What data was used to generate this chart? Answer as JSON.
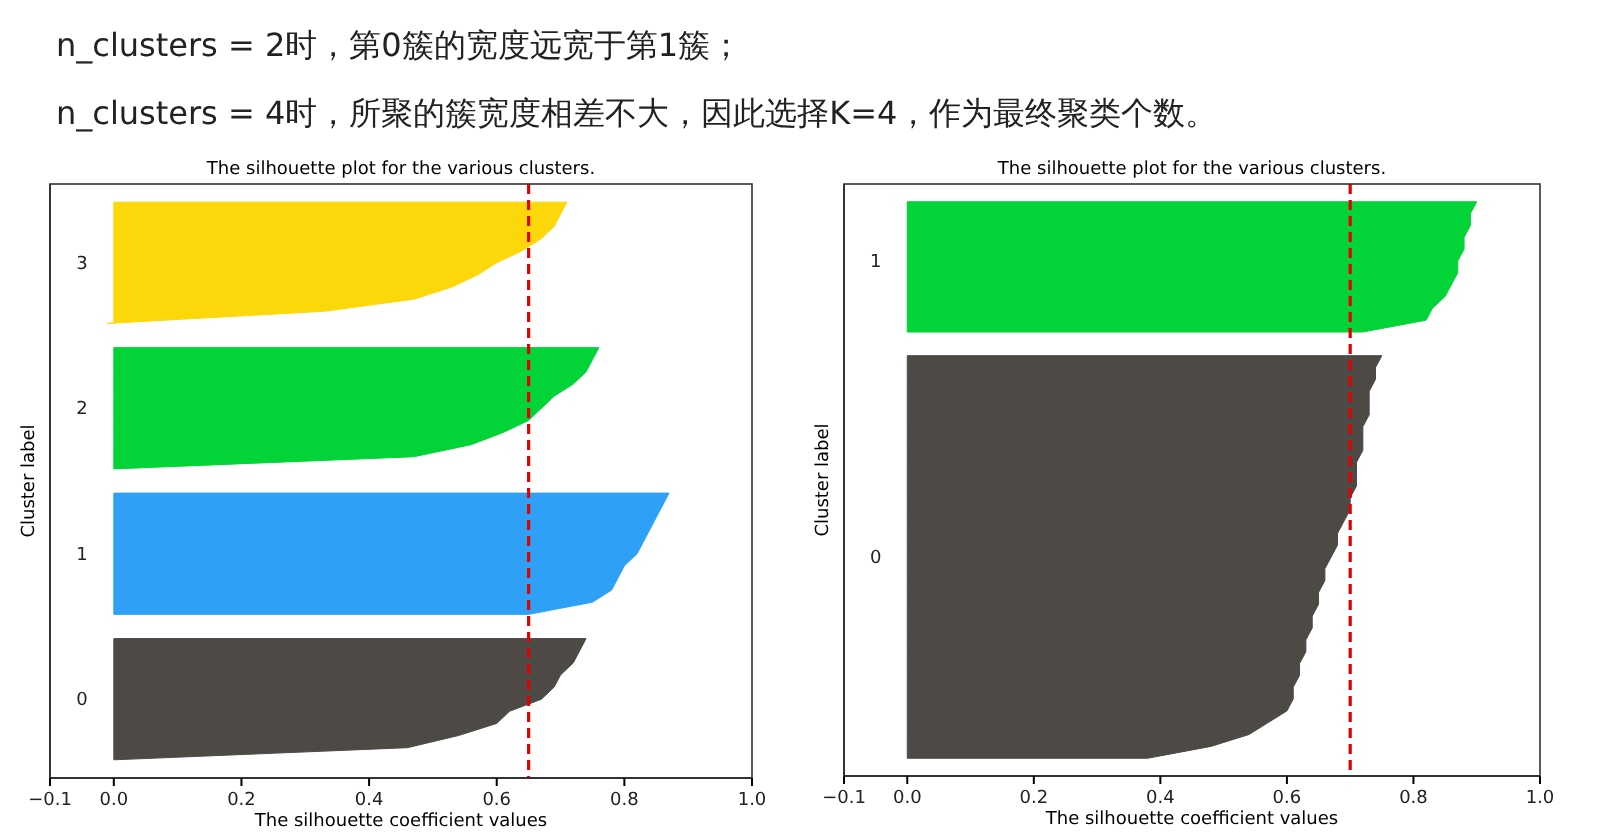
{
  "chart_data": [
    {
      "type": "area",
      "orientation": "horizontal",
      "title": "The silhouette plot for the various clusters.",
      "xlabel": "The silhouette coefficient values",
      "ylabel": "Cluster label",
      "annotations": [
        "n_clusters = 2时，第0簇的宽度远宽于第1簇；",
        "n_clusters = 4时，所聚的簇宽度相差不大，因此选择K=4，作为最终聚类个数。"
      ],
      "categories": [
        null,
        null,
        null,
        null,
        null,
        null,
        "3",
        null,
        null,
        null,
        null,
        null,
        null,
        null,
        null,
        null,
        null,
        null,
        "2",
        null,
        null,
        null,
        null,
        null,
        null,
        null,
        null,
        null,
        null,
        null,
        "1",
        null,
        null,
        null,
        null,
        null,
        null,
        null,
        null,
        null,
        null,
        null,
        "0",
        null,
        null,
        null,
        null,
        null,
        null
      ],
      "xlim": [
        -0.1,
        1.0
      ],
      "xticks": [
        {
          "value": -0.1,
          "label": "−0.1"
        },
        {
          "value": 0,
          "label": "0.0"
        },
        0.2,
        0.4,
        0.6,
        0.8,
        {
          "value": 1,
          "label": "1.0"
        }
      ],
      "ref_lines": [
        {
          "axis": "x",
          "value": 0.65,
          "color": "#e00000",
          "line_style": "dashed"
        }
      ],
      "grid": false,
      "series": [
        {
          "color": "#fcd80b",
          "values": [
            null,
            0.71,
            0.7,
            0.69,
            0.67,
            0.64,
            0.6,
            0.57,
            0.53,
            0.47,
            0.33,
            -0.01,
            null,
            null,
            null,
            null,
            null,
            null,
            null,
            null,
            null,
            null,
            null,
            null,
            null,
            null,
            null,
            null,
            null,
            null,
            null,
            null,
            null,
            null,
            null,
            null,
            null,
            null,
            null,
            null,
            null,
            null,
            null,
            null,
            null,
            null,
            null,
            null,
            null
          ]
        },
        {
          "color": "#02d437",
          "values": [
            null,
            null,
            null,
            null,
            null,
            null,
            null,
            null,
            null,
            null,
            null,
            null,
            null,
            0.76,
            0.75,
            0.74,
            0.72,
            0.69,
            0.67,
            0.65,
            0.61,
            0.56,
            0.47,
            0.0,
            null,
            null,
            null,
            null,
            null,
            null,
            null,
            null,
            null,
            null,
            null,
            null,
            null,
            null,
            null,
            null,
            null,
            null,
            null,
            null,
            null,
            null,
            null,
            null,
            null
          ]
        },
        {
          "color": "#2ea0f5",
          "values": [
            null,
            null,
            null,
            null,
            null,
            null,
            null,
            null,
            null,
            null,
            null,
            null,
            null,
            null,
            null,
            null,
            null,
            null,
            null,
            null,
            null,
            null,
            null,
            null,
            null,
            0.87,
            0.86,
            0.85,
            0.84,
            0.83,
            0.82,
            0.8,
            0.79,
            0.78,
            0.75,
            0.65,
            null,
            null,
            null,
            null,
            null,
            null,
            null,
            null,
            null,
            null,
            null,
            null,
            null
          ]
        },
        {
          "color": "#4d4a45",
          "values": [
            null,
            null,
            null,
            null,
            null,
            null,
            null,
            null,
            null,
            null,
            null,
            null,
            null,
            null,
            null,
            null,
            null,
            null,
            null,
            null,
            null,
            null,
            null,
            null,
            null,
            null,
            null,
            null,
            null,
            null,
            null,
            null,
            null,
            null,
            null,
            null,
            null,
            0.74,
            0.73,
            0.72,
            0.7,
            0.69,
            0.67,
            0.62,
            0.6,
            0.54,
            0.46,
            0.0,
            null
          ]
        }
      ]
    },
    {
      "type": "area",
      "orientation": "horizontal",
      "title": "The silhouette plot for the various clusters.",
      "xlabel": "The silhouette coefficient values",
      "ylabel": "Cluster label",
      "categories": [
        null,
        null,
        null,
        null,
        null,
        null,
        "1",
        null,
        null,
        null,
        null,
        null,
        null,
        null,
        null,
        null,
        null,
        null,
        null,
        null,
        null,
        null,
        null,
        null,
        null,
        null,
        null,
        null,
        null,
        null,
        null,
        "0",
        null,
        null,
        null,
        null,
        null,
        null,
        null,
        null,
        null,
        null,
        null,
        null,
        null,
        null,
        null,
        null,
        null,
        null
      ],
      "xlim": [
        -0.1,
        1.0
      ],
      "xticks": [
        {
          "value": -0.1,
          "label": "−0.1"
        },
        {
          "value": 0,
          "label": "0.0"
        },
        0.2,
        0.4,
        0.6,
        0.8,
        {
          "value": 1,
          "label": "1.0"
        }
      ],
      "ref_lines": [
        {
          "axis": "x",
          "value": 0.7,
          "color": "#e00000",
          "line_style": "dashed"
        }
      ],
      "grid": false,
      "series": [
        {
          "color": "#02d437",
          "values": [
            null,
            0.9,
            0.89,
            0.89,
            0.88,
            0.88,
            0.87,
            0.87,
            0.86,
            0.85,
            0.83,
            0.82,
            0.72,
            null,
            null,
            null,
            null,
            null,
            null,
            null,
            null,
            null,
            null,
            null,
            null,
            null,
            null,
            null,
            null,
            null,
            null,
            null,
            null,
            null,
            null,
            null,
            null,
            null,
            null,
            null,
            null,
            null,
            null,
            null,
            null,
            null,
            null,
            null,
            null,
            null
          ]
        },
        {
          "color": "#4d4a45",
          "values": [
            null,
            null,
            null,
            null,
            null,
            null,
            null,
            null,
            null,
            null,
            null,
            null,
            null,
            null,
            0.75,
            0.74,
            0.74,
            0.73,
            0.73,
            0.73,
            0.72,
            0.72,
            0.72,
            0.71,
            0.71,
            0.71,
            0.7,
            0.7,
            0.69,
            0.68,
            0.68,
            0.67,
            0.66,
            0.66,
            0.65,
            0.65,
            0.64,
            0.64,
            0.63,
            0.63,
            0.62,
            0.62,
            0.61,
            0.61,
            0.6,
            0.57,
            0.54,
            0.48,
            0.38,
            null
          ]
        }
      ]
    }
  ]
}
